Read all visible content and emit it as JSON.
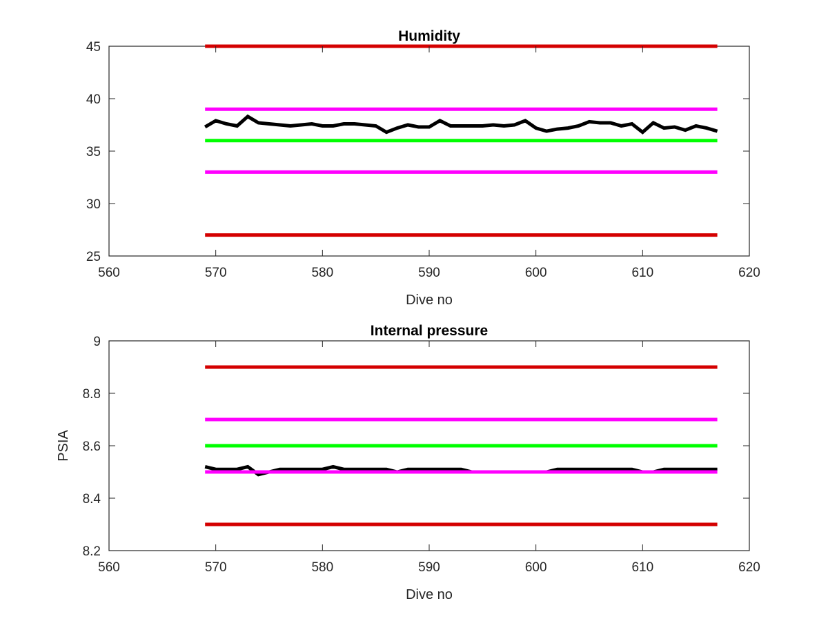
{
  "figure": {
    "background": "#ffffff",
    "axis_color": "#262626"
  },
  "chart_data": [
    {
      "type": "line",
      "title": "Humidity",
      "xlabel": "Dive no",
      "ylabel": "",
      "xlim": [
        560,
        620
      ],
      "ylim": [
        25,
        45
      ],
      "xticks": [
        560,
        570,
        580,
        590,
        600,
        610,
        620
      ],
      "yticks": [
        25,
        30,
        35,
        40,
        45
      ],
      "xtick_labels": [
        "560",
        "570",
        "580",
        "590",
        "600",
        "610",
        "620"
      ],
      "ytick_labels": [
        "25",
        "30",
        "35",
        "40",
        "45"
      ],
      "grid": false,
      "legend": "none",
      "reference_lines": [
        {
          "y": 45,
          "x": [
            569,
            617
          ],
          "color": "#d40000"
        },
        {
          "y": 39,
          "x": [
            569,
            617
          ],
          "color": "#ff00ff"
        },
        {
          "y": 36,
          "x": [
            569,
            617
          ],
          "color": "#00ff00"
        },
        {
          "y": 33,
          "x": [
            569,
            617
          ],
          "color": "#ff00ff"
        },
        {
          "y": 27,
          "x": [
            569,
            617
          ],
          "color": "#d40000"
        }
      ],
      "series": [
        {
          "color": "#000000",
          "x": [
            569,
            570,
            571,
            572,
            573,
            574,
            575,
            576,
            577,
            578,
            579,
            580,
            581,
            582,
            583,
            584,
            585,
            586,
            587,
            588,
            589,
            590,
            591,
            592,
            593,
            594,
            595,
            596,
            597,
            598,
            599,
            600,
            601,
            602,
            603,
            604,
            605,
            606,
            607,
            608,
            609,
            610,
            611,
            612,
            613,
            614,
            615,
            616,
            617
          ],
          "values": [
            37.3,
            37.9,
            37.6,
            37.4,
            38.3,
            37.7,
            37.6,
            37.5,
            37.4,
            37.5,
            37.6,
            37.4,
            37.4,
            37.6,
            37.6,
            37.5,
            37.4,
            36.8,
            37.2,
            37.5,
            37.3,
            37.3,
            37.9,
            37.4,
            37.4,
            37.4,
            37.4,
            37.5,
            37.4,
            37.5,
            37.9,
            37.2,
            36.9,
            37.1,
            37.2,
            37.4,
            37.8,
            37.7,
            37.7,
            37.4,
            37.6,
            36.8,
            37.7,
            37.2,
            37.3,
            37.0,
            37.4,
            37.2,
            36.9
          ]
        }
      ]
    },
    {
      "type": "line",
      "title": "Internal pressure",
      "xlabel": "Dive no",
      "ylabel": "PSIA",
      "xlim": [
        560,
        620
      ],
      "ylim": [
        8.2,
        9.0
      ],
      "xticks": [
        560,
        570,
        580,
        590,
        600,
        610,
        620
      ],
      "yticks": [
        8.2,
        8.4,
        8.6,
        8.8,
        9.0
      ],
      "xtick_labels": [
        "560",
        "570",
        "580",
        "590",
        "600",
        "610",
        "620"
      ],
      "ytick_labels": [
        "8.2",
        "8.4",
        "8.6",
        "8.8",
        "9"
      ],
      "grid": false,
      "legend": "none",
      "reference_lines": [
        {
          "y": 8.9,
          "x": [
            569,
            617
          ],
          "color": "#d40000"
        },
        {
          "y": 8.7,
          "x": [
            569,
            617
          ],
          "color": "#ff00ff"
        },
        {
          "y": 8.6,
          "x": [
            569,
            617
          ],
          "color": "#00ff00"
        },
        {
          "y": 8.3,
          "x": [
            569,
            617
          ],
          "color": "#d40000"
        }
      ],
      "series": [
        {
          "color": "#000000",
          "x": [
            569,
            570,
            571,
            572,
            573,
            574,
            575,
            576,
            577,
            578,
            579,
            580,
            581,
            582,
            583,
            584,
            585,
            586,
            587,
            588,
            589,
            590,
            591,
            592,
            593,
            594,
            595,
            596,
            597,
            598,
            599,
            600,
            601,
            602,
            603,
            604,
            605,
            606,
            607,
            608,
            609,
            610,
            611,
            612,
            613,
            614,
            615,
            616,
            617
          ],
          "values": [
            8.52,
            8.51,
            8.51,
            8.51,
            8.52,
            8.49,
            8.5,
            8.51,
            8.51,
            8.51,
            8.51,
            8.51,
            8.52,
            8.51,
            8.51,
            8.51,
            8.51,
            8.51,
            8.5,
            8.51,
            8.51,
            8.51,
            8.51,
            8.51,
            8.51,
            8.5,
            8.5,
            8.5,
            8.5,
            8.5,
            8.5,
            8.5,
            8.5,
            8.51,
            8.51,
            8.51,
            8.51,
            8.51,
            8.51,
            8.51,
            8.51,
            8.5,
            8.5,
            8.51,
            8.51,
            8.51,
            8.51,
            8.51,
            8.51
          ]
        },
        {
          "color": "#ff00ff",
          "x": [
            569,
            617
          ],
          "values": [
            8.5,
            8.5
          ]
        }
      ]
    }
  ]
}
